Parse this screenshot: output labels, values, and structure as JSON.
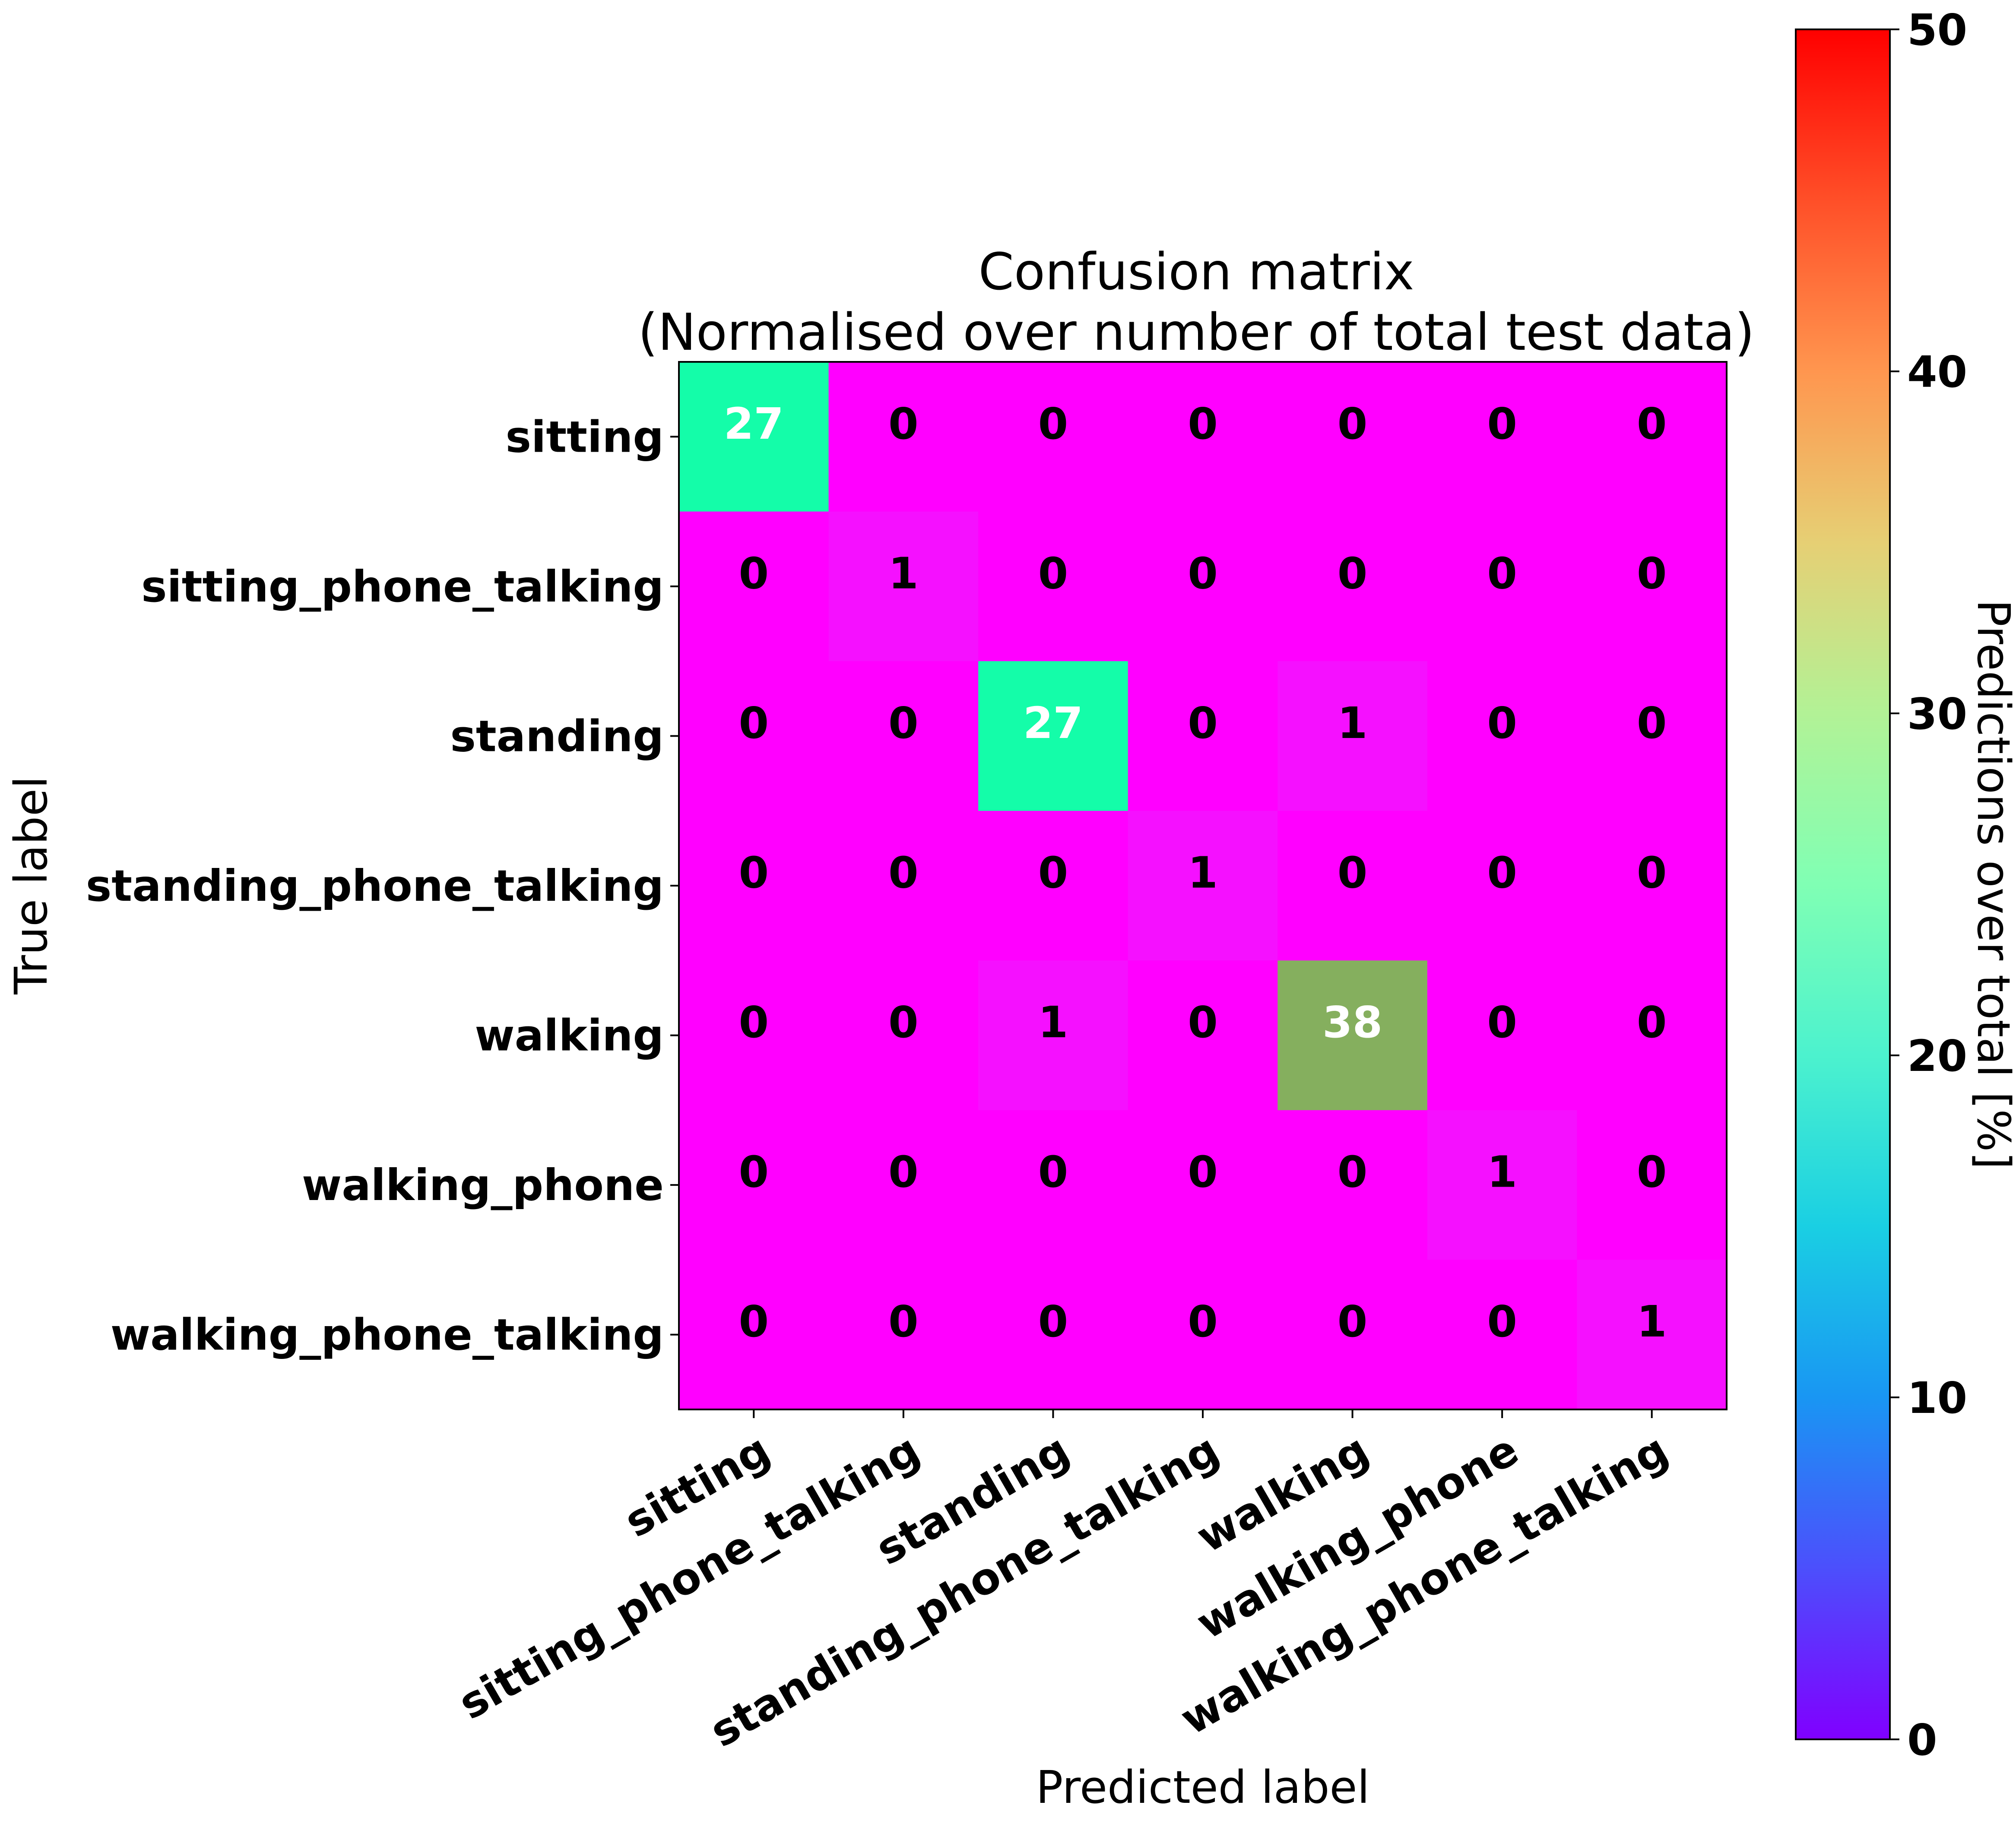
{
  "chart_data": {
    "type": "heatmap",
    "title_line1": "Confusion matrix",
    "title_line2": "(Normalised over number of total test data)",
    "xlabel": "Predicted label",
    "ylabel": "True label",
    "colorbar_label": "Predictions over total [%]",
    "x_categories": [
      "sitting",
      "sitting_phone_talking",
      "standing",
      "standing_phone_talking",
      "walking",
      "walking_phone",
      "walking_phone_talking"
    ],
    "y_categories": [
      "sitting",
      "sitting_phone_talking",
      "standing",
      "standing_phone_talking",
      "walking",
      "walking_phone",
      "walking_phone_talking"
    ],
    "values": [
      [
        27,
        0,
        0,
        0,
        0,
        0,
        0
      ],
      [
        0,
        1,
        0,
        0,
        0,
        0,
        0
      ],
      [
        0,
        0,
        27,
        0,
        1,
        0,
        0
      ],
      [
        0,
        0,
        0,
        1,
        0,
        0,
        0
      ],
      [
        0,
        0,
        1,
        0,
        38,
        0,
        0
      ],
      [
        0,
        0,
        0,
        0,
        0,
        1,
        0
      ],
      [
        0,
        0,
        0,
        0,
        0,
        0,
        1
      ]
    ],
    "colorbar_range": [
      0,
      50
    ],
    "colorbar_ticks": [
      0,
      10,
      20,
      30,
      40,
      50
    ],
    "colormap": "rainbow",
    "grid": false
  }
}
